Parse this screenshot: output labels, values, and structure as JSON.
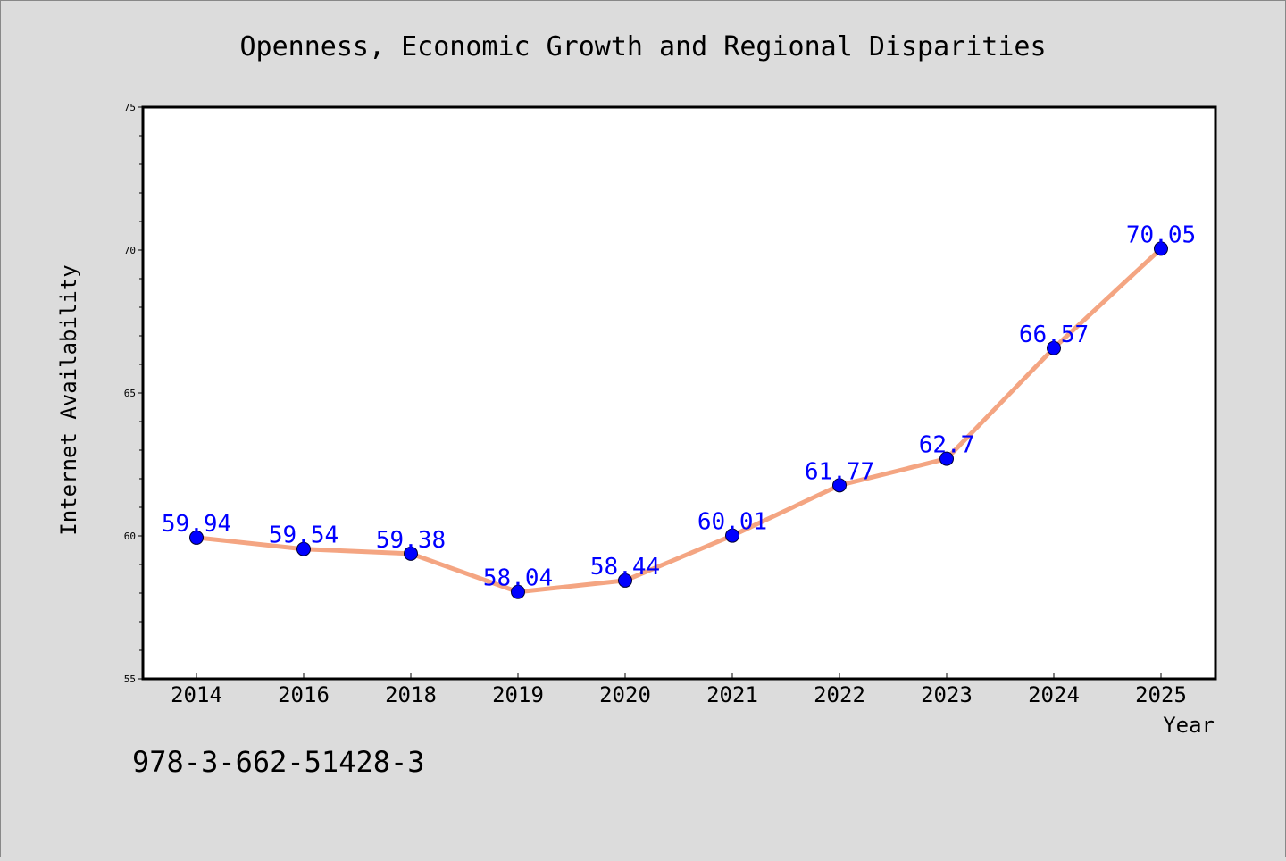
{
  "chart_data": {
    "type": "line",
    "title": "Openness, Economic Growth and Regional Disparities",
    "xlabel": "Year",
    "ylabel": "Internet Availability",
    "categories": [
      "2014",
      "2016",
      "2018",
      "2019",
      "2020",
      "2021",
      "2022",
      "2023",
      "2024",
      "2025"
    ],
    "series": [
      {
        "values": [
          59.94,
          59.54,
          59.38,
          58.04,
          58.44,
          60.01,
          61.77,
          62.7,
          66.57,
          70.05
        ],
        "labels": [
          "59.94",
          "59.54",
          "59.38",
          "58.04",
          "58.44",
          "60.01",
          "61.77",
          "62.7",
          "66.57",
          "70.05"
        ]
      }
    ],
    "ylim": [
      55,
      75
    ],
    "yticks": [
      "55",
      "60",
      "65",
      "70",
      "75"
    ],
    "grid": false,
    "legend": "none",
    "colors": {
      "line": "#f4a582",
      "marker": "#0000ff",
      "data_label": "#0000ff",
      "background": "#dcdcdc",
      "plot_background": "#ffffff"
    }
  },
  "footer": {
    "isbn": "978-3-662-51428-3"
  }
}
